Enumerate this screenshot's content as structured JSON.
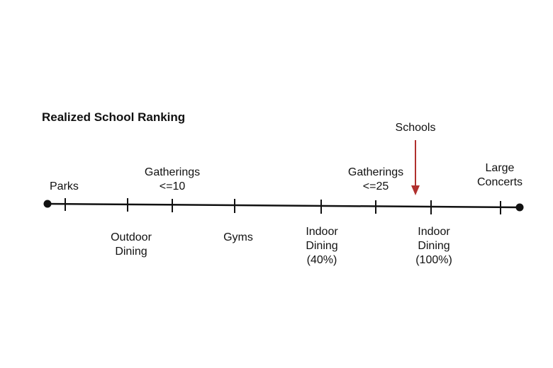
{
  "title": "Realized School Ranking",
  "marker": {
    "label": "Schools",
    "color": "#b0302e"
  },
  "items_above": [
    {
      "id": "parks",
      "lines": [
        "Parks"
      ]
    },
    {
      "id": "gatherings-10",
      "lines": [
        "Gatherings",
        "<=10"
      ]
    },
    {
      "id": "gatherings-25",
      "lines": [
        "Gatherings",
        "<=25"
      ]
    },
    {
      "id": "large-concerts",
      "lines": [
        "Large",
        "Concerts"
      ]
    }
  ],
  "items_below": [
    {
      "id": "outdoor-dining",
      "lines": [
        "Outdoor",
        "Dining"
      ]
    },
    {
      "id": "gyms",
      "lines": [
        "Gyms"
      ]
    },
    {
      "id": "indoor-dining-40",
      "lines": [
        "Indoor",
        "Dining",
        "(40%)"
      ]
    },
    {
      "id": "indoor-dining-100",
      "lines": [
        "Indoor",
        "Dining",
        "(100%)"
      ]
    }
  ]
}
